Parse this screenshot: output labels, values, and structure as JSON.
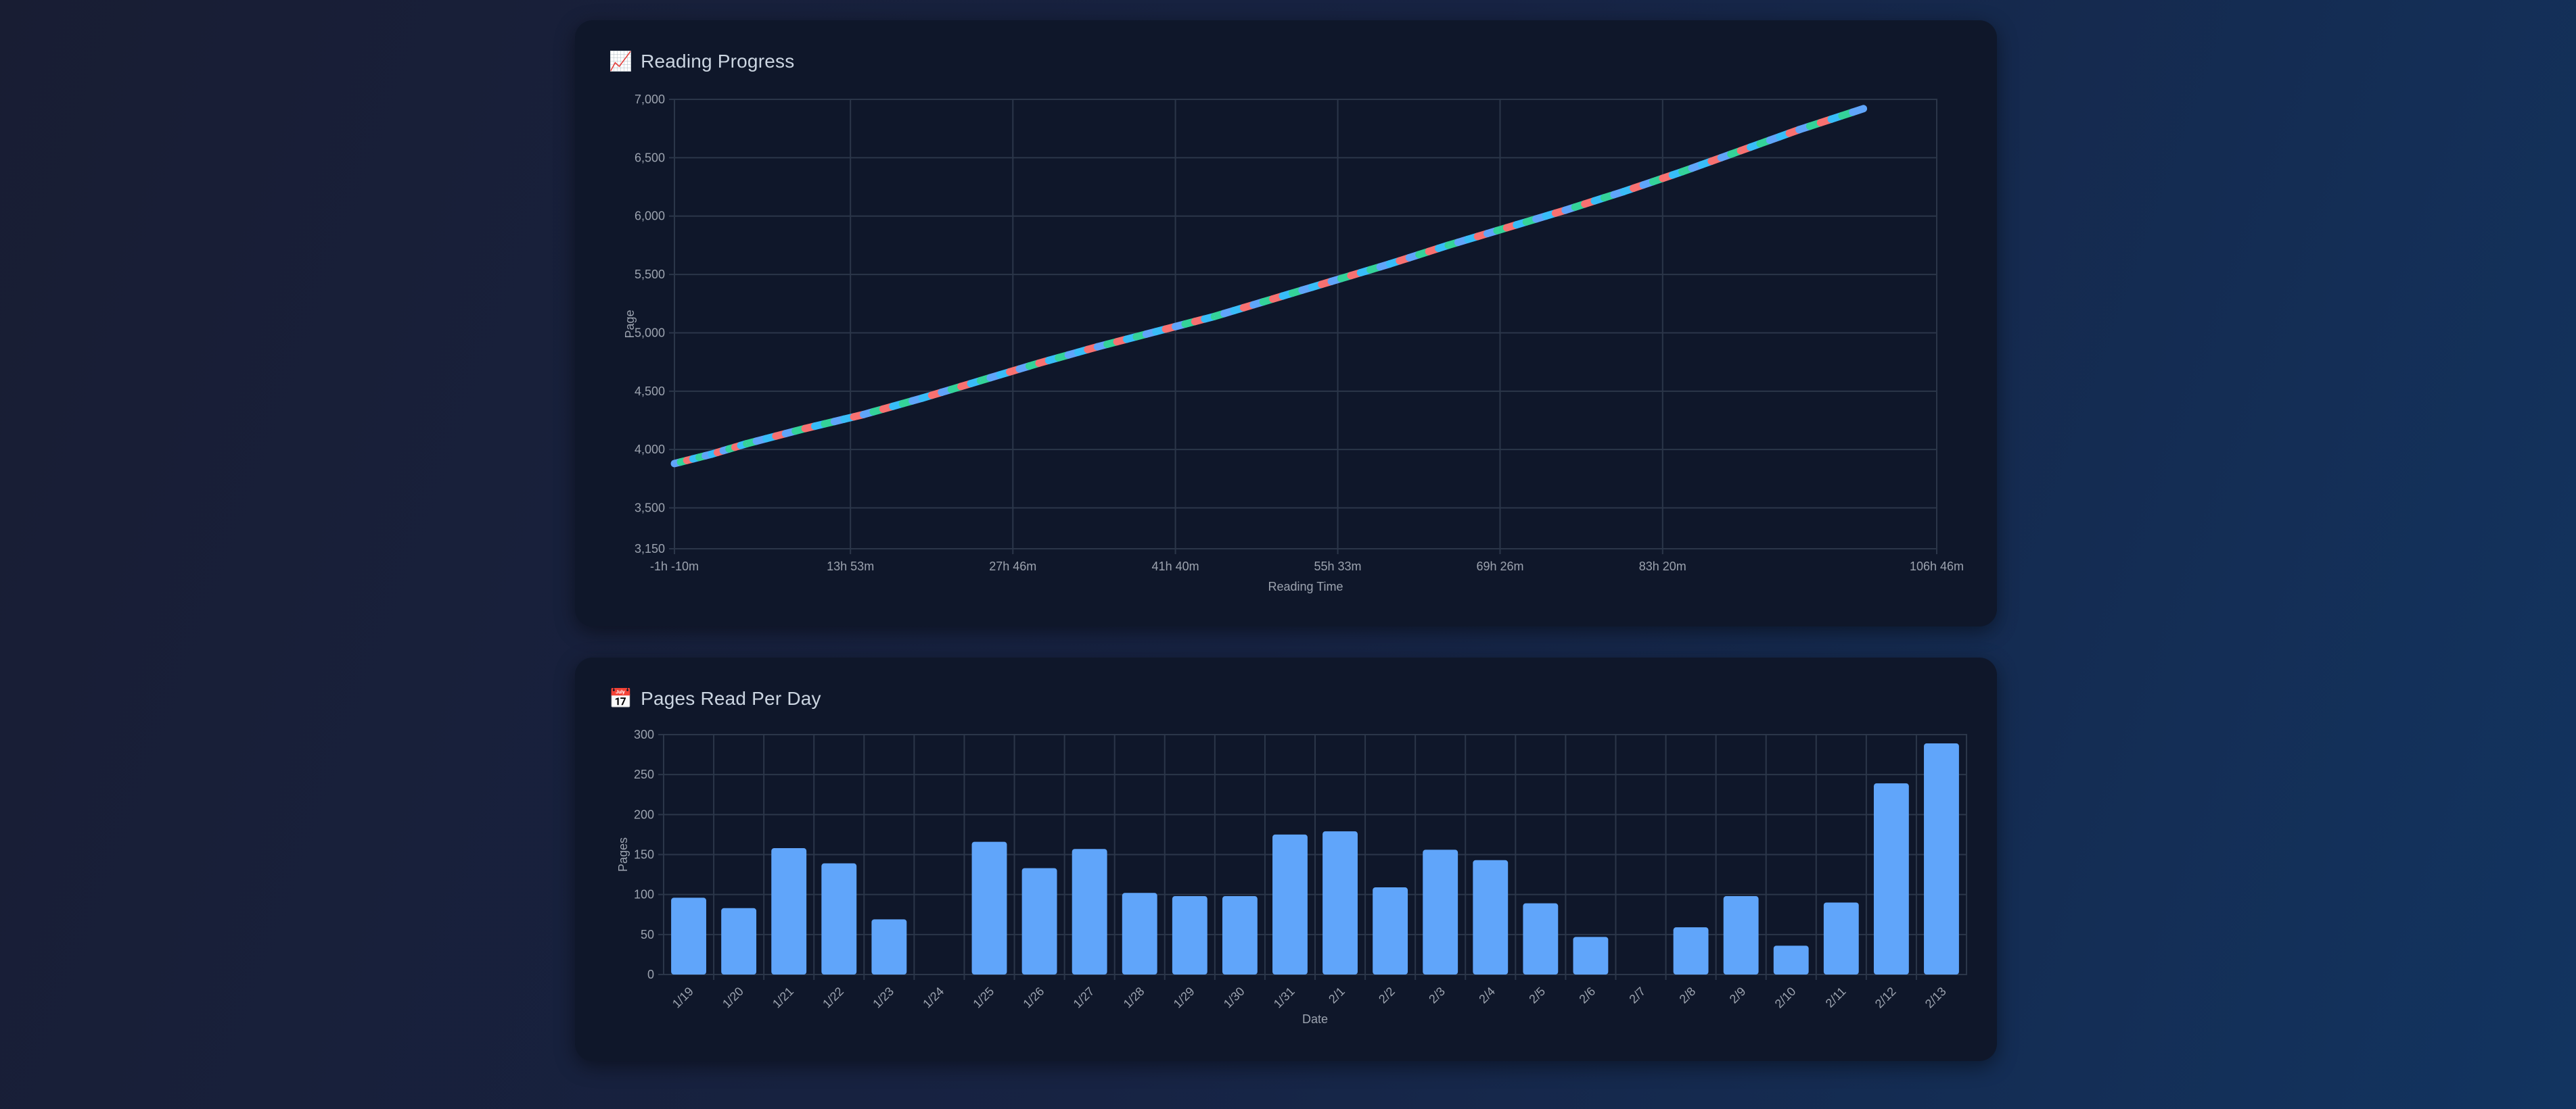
{
  "colors": {
    "bar": "#60a5fa",
    "line_segments": [
      "#60a5fa",
      "#a78bfa",
      "#38bdf8",
      "#f472b6",
      "#34d399",
      "#facc15",
      "#f87171",
      "#c084fc"
    ],
    "grid": "#2b3649",
    "tick": "#9ca3af"
  },
  "progress_card": {
    "icon": "chart-increasing-icon",
    "title": "Reading Progress"
  },
  "daily_card": {
    "icon": "calendar-icon",
    "title": "Pages Read Per Day"
  },
  "chart_data": [
    {
      "type": "line",
      "title": "Reading Progress",
      "xlabel": "Reading Time",
      "ylabel": "Page",
      "x_ticks": [
        "-1h -10m",
        "13h 53m",
        "27h 46m",
        "41h 40m",
        "55h 33m",
        "69h 26m",
        "83h 20m",
        "106h 46m"
      ],
      "x_tick_hours": [
        -1.17,
        13.88,
        27.77,
        41.67,
        55.55,
        69.43,
        83.33,
        106.77
      ],
      "xlim_hours": [
        -1.17,
        106.77
      ],
      "y_ticks": [
        3150,
        3500,
        4000,
        4500,
        5000,
        5500,
        6000,
        6500,
        7000
      ],
      "y_tick_labels": [
        "3,150",
        "3,500",
        "4,000",
        "4,500",
        "5,000",
        "5,500",
        "6,000",
        "6,500",
        "7,000"
      ],
      "ylim": [
        3150,
        7000
      ],
      "grid": true,
      "x": [
        -1.17,
        2,
        5,
        10,
        15,
        20,
        25,
        30,
        35,
        40,
        45,
        50,
        55,
        60,
        65,
        70,
        75,
        80,
        85,
        90,
        95,
        100.5
      ],
      "y": [
        3880,
        3960,
        4050,
        4180,
        4300,
        4440,
        4590,
        4740,
        4880,
        5010,
        5140,
        5290,
        5440,
        5590,
        5750,
        5900,
        6050,
        6210,
        6380,
        6560,
        6740,
        6920
      ]
    },
    {
      "type": "bar",
      "title": "Pages Read Per Day",
      "xlabel": "Date",
      "ylabel": "Pages",
      "categories": [
        "1/19",
        "1/20",
        "1/21",
        "1/22",
        "1/23",
        "1/24",
        "1/25",
        "1/26",
        "1/27",
        "1/28",
        "1/29",
        "1/30",
        "1/31",
        "2/1",
        "2/2",
        "2/3",
        "2/4",
        "2/5",
        "2/6",
        "2/7",
        "2/8",
        "2/9",
        "2/10",
        "2/11",
        "2/12",
        "2/13"
      ],
      "values": [
        96,
        83,
        158,
        139,
        69,
        0,
        166,
        133,
        157,
        102,
        98,
        98,
        175,
        179,
        109,
        156,
        143,
        89,
        47,
        0,
        59,
        98,
        36,
        90,
        239,
        289
      ],
      "y_ticks": [
        0,
        50,
        100,
        150,
        200,
        250,
        300
      ],
      "ylim": [
        0,
        300
      ],
      "grid": true
    }
  ]
}
